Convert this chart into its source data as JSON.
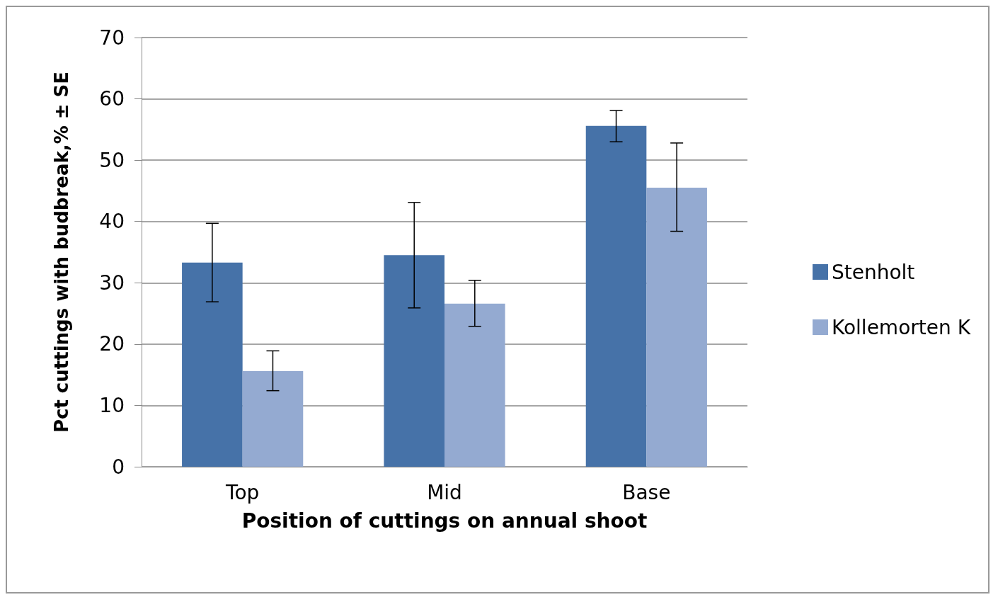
{
  "chart_data": {
    "type": "bar",
    "xlabel": "Position of cuttings on annual shoot",
    "ylabel": "Pct cuttings with budbreak,% ± SE",
    "categories": [
      "Top",
      "Mid",
      "Base"
    ],
    "series": [
      {
        "name": "Stenholt",
        "color": "#4672a8",
        "values": [
          33.3,
          34.5,
          55.6
        ],
        "errors": [
          [
            26.9,
            39.7
          ],
          [
            25.9,
            43.1
          ],
          [
            53.0,
            58.1
          ]
        ]
      },
      {
        "name": "Kollemorten K",
        "color": "#94aad1",
        "values": [
          15.6,
          26.6,
          45.5
        ],
        "errors": [
          [
            12.4,
            18.9
          ],
          [
            22.9,
            30.4
          ],
          [
            38.4,
            52.8
          ]
        ]
      }
    ],
    "ylim": [
      0,
      70
    ],
    "yticks": [
      0,
      10,
      20,
      30,
      40,
      50,
      60,
      70
    ],
    "grid": "y",
    "legend": "right"
  }
}
